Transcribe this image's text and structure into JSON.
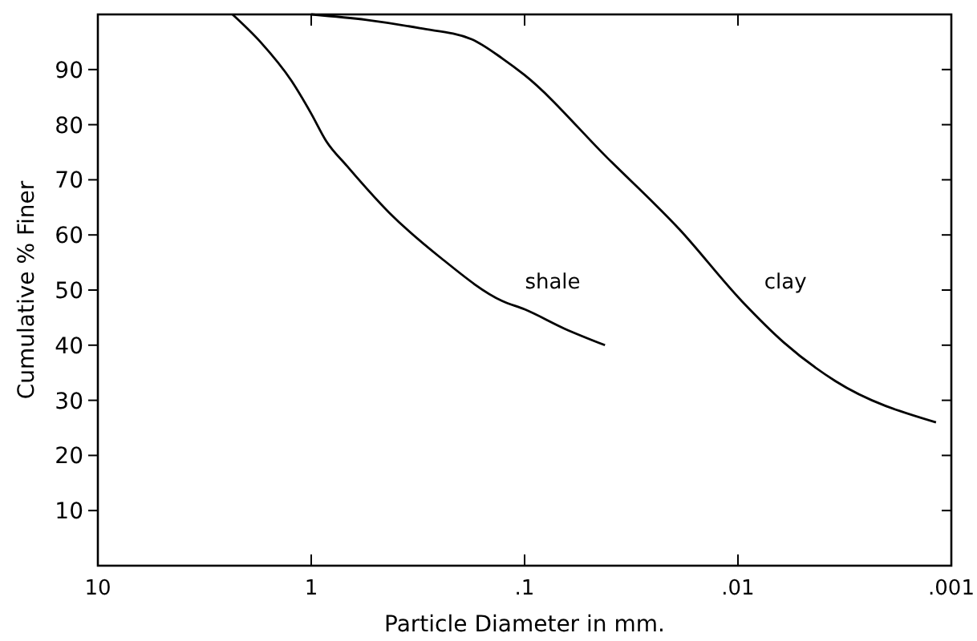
{
  "chart_data": {
    "type": "line",
    "xlabel": "Particle Diameter in mm.",
    "ylabel": "Cumulative % Finer",
    "log": "x",
    "xlim": [
      10,
      0.001
    ],
    "ylim": [
      0,
      100
    ],
    "xticks": [
      10,
      1,
      {
        "value": 0.1,
        "label": ".1"
      },
      {
        "value": 0.01,
        "label": ".01"
      },
      {
        "value": 0.001,
        "label": ".001"
      }
    ],
    "yticks": [
      10,
      20,
      30,
      40,
      50,
      60,
      70,
      80,
      90
    ],
    "grid": false,
    "legend": false,
    "marker": "none",
    "line_style": "solid",
    "series": [
      {
        "name": "shale",
        "color": "#000000",
        "x": [
          2.34,
          1.73,
          1.24,
          1.0,
          0.85,
          0.68,
          0.43,
          0.25,
          0.127,
          0.1,
          0.065,
          0.042
        ],
        "values": [
          100,
          95,
          88,
          82,
          77,
          72.5,
          64,
          56,
          48,
          46.5,
          43,
          40
        ]
      },
      {
        "name": "clay",
        "color": "#000000",
        "x": [
          1.0,
          0.55,
          0.31,
          0.177,
          0.127,
          0.1,
          0.041,
          0.0188,
          0.0096,
          0.0061,
          0.0035,
          0.00118
        ],
        "values": [
          100,
          99,
          97.5,
          95.5,
          92,
          89,
          74,
          61,
          48,
          40.5,
          33.5,
          26
        ]
      }
    ]
  }
}
